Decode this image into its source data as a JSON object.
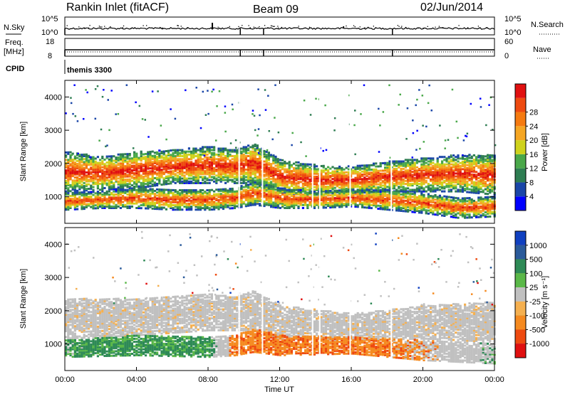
{
  "header": {
    "station": "Rankin Inlet (fitACF)",
    "beam": "Beam 09",
    "date": "02/Jun/2014"
  },
  "top_panel": {
    "nsky_label": "N.Sky",
    "nsky_ticks": [
      "10^5",
      "10^0"
    ],
    "nsearch_label": "N.Search",
    "nsearch_ticks": [
      "10^5",
      "10^0"
    ],
    "freq_label_1": "Freq.",
    "freq_label_2": "[MHz]",
    "freq_ticks": [
      "18",
      "8"
    ],
    "nave_label": "Nave",
    "nave_ticks": [
      "60",
      "0"
    ],
    "cpid_label": "CPID",
    "cpid_value": "themis 3300"
  },
  "colors": {
    "power": [
      "#0000ff",
      "#1a46a8",
      "#2e7d52",
      "#4aa84a",
      "#cfd21c",
      "#f5a623",
      "#f57a10",
      "#ee4a10",
      "#e01010"
    ],
    "velocity": [
      "#e01010",
      "#ee4a10",
      "#f58a20",
      "#f5b050",
      "#c0c0c0",
      "#5ab848",
      "#2e8a56",
      "#2a5a9a",
      "#1040c0"
    ]
  },
  "chart_data": [
    {
      "type": "heatmap",
      "panel": "power",
      "ylabel": "Slant Range [km]",
      "yticks": [
        "1000",
        "2000",
        "3000",
        "4000"
      ],
      "ylim": [
        200,
        4500
      ],
      "xlim": [
        0,
        24
      ],
      "colorbar_label": "Power [dB]",
      "colorbar_ticks": [
        "4",
        "8",
        "12",
        "16",
        "20",
        "24",
        "28"
      ],
      "bands": [
        {
          "name": "far",
          "x": [
            0,
            2,
            4,
            6,
            8,
            9.5,
            10.5,
            12,
            14,
            16,
            18,
            20,
            22,
            24
          ],
          "center_km": [
            1750,
            1700,
            1800,
            1900,
            1950,
            1900,
            2000,
            1600,
            1500,
            1500,
            1600,
            1650,
            1700,
            1650
          ],
          "width_km": [
            600,
            500,
            550,
            500,
            550,
            500,
            600,
            500,
            450,
            400,
            450,
            500,
            550,
            600
          ],
          "peak_db": 28
        },
        {
          "name": "near",
          "x": [
            0,
            2,
            4,
            6,
            8,
            9.5,
            10.5,
            12,
            14,
            16,
            18,
            20,
            22,
            24
          ],
          "center_km": [
            850,
            900,
            950,
            900,
            900,
            950,
            1100,
            950,
            900,
            950,
            900,
            800,
            650,
            700
          ],
          "width_km": [
            250,
            250,
            300,
            300,
            300,
            300,
            350,
            300,
            250,
            250,
            300,
            300,
            300,
            300
          ],
          "peak_db": 26
        }
      ]
    },
    {
      "type": "heatmap",
      "panel": "velocity",
      "ylabel": "Slant Range [km]",
      "yticks": [
        "1000",
        "2000",
        "3000",
        "4000"
      ],
      "ylim": [
        200,
        4500
      ],
      "xlim": [
        0,
        24
      ],
      "colorbar_label": "Velocity [m s⁻¹]",
      "colorbar_ticks": [
        "1000",
        "500",
        "100",
        "25",
        "-25",
        "-100",
        "-500",
        "-1000"
      ],
      "bands": [
        {
          "name": "far",
          "x": [
            0,
            4,
            8,
            9.5,
            10.5,
            12,
            16,
            20,
            24
          ],
          "center_km": [
            1750,
            1800,
            1950,
            1900,
            2000,
            1650,
            1500,
            1650,
            1650
          ],
          "width_km": [
            600,
            550,
            550,
            500,
            600,
            500,
            400,
            500,
            600
          ],
          "velocity": [
            0,
            0,
            0,
            0,
            0,
            0,
            0,
            0,
            0
          ]
        },
        {
          "name": "near",
          "x": [
            0,
            4,
            8,
            9.5,
            10.5,
            12,
            16,
            20,
            24
          ],
          "center_km": [
            850,
            950,
            900,
            950,
            1100,
            950,
            950,
            800,
            700
          ],
          "width_km": [
            250,
            300,
            300,
            300,
            350,
            300,
            250,
            300,
            300
          ],
          "velocity": [
            200,
            300,
            250,
            -300,
            -400,
            -350,
            -300,
            -150,
            150
          ]
        }
      ]
    }
  ],
  "x_axis": {
    "ticks": [
      "00:00",
      "04:00",
      "08:00",
      "12:00",
      "16:00",
      "20:00",
      "00:00"
    ],
    "label": "Time UT"
  }
}
